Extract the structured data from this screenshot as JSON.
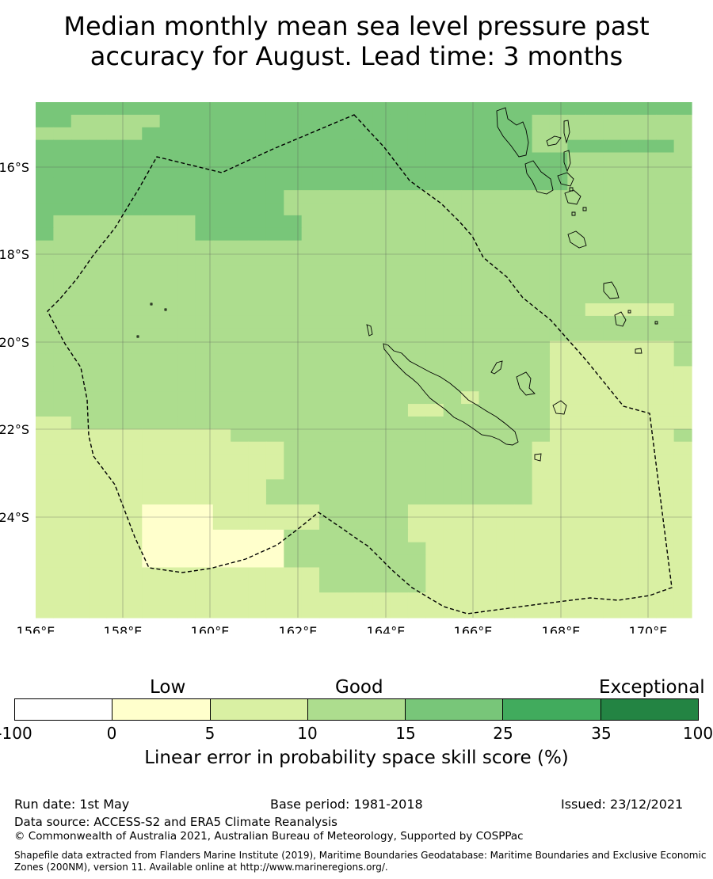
{
  "title": {
    "line1": "Median monthly mean sea level pressure past",
    "line2": "accuracy for August. Lead time: 3 months"
  },
  "map": {
    "lon_labels": [
      "156°E",
      "158°E",
      "160°E",
      "162°E",
      "164°E",
      "166°E",
      "168°E",
      "170°E"
    ],
    "lat_labels": [
      "16°S",
      "18°S",
      "20°S",
      "22°S",
      "24°S"
    ],
    "grid_category_rows": [
      "3333333333333333333333333333333333333",
      "3322222333333333333333333333222222222",
      "2222223333333333333333333333222222222",
      "3333333333333333333333333333223333332",
      "3333333333333333333333333333332222222",
      "3333333333333333333333333333332222222",
      "3333333333333333333333333333332222222",
      "3333333333333322222222222222222222222",
      "3333333333333322222222222222222222222",
      "3222222223333332222222222222222222222",
      "3222222223333332222222222222222222222",
      "2222222222222222222222222222222222222",
      "2222222222222222222222222222222222222",
      "2222222222222222222222222222222222222",
      "2222222222222222222222222222222222222",
      "2222222222222222222222222222222222222",
      "2222222222222222222222222222222111112",
      "2222222222222222222222222222222222222",
      "2222222222222222222222222222222222222",
      "2222222222222222222222222222211111112",
      "2222222222222222222222222222211111112",
      "2222222222222222222222222222211111111",
      "2222222222222222222222222222211111111",
      "2222222222222222222222221222211111111",
      "2222222222222222222221122222211111111",
      "1122222222222222222222222222211111111",
      "1111111111122222222222222222211111112",
      "1111111111111122222222222222111111111",
      "1111111111111122222222222222111111111",
      "1111111111111122222222222222111111111",
      "1111111111111222222222222222111111111",
      "1111111111111222222222222222111111111",
      "1111110000111111222221111111111111111",
      "1111110000111111222221111111111111111",
      "1111110000000022222221111111111111111",
      "1111110000000022222222111111111111111",
      "1111110000000022222222111111111111111",
      "1111111111111111222222111111111111111",
      "1111111111111111222222111111111111111",
      "1111111111111111111111111111111111111",
      "1111111111111111111111111111111111111"
    ]
  },
  "colorbar": {
    "headings": [
      "Low",
      "Good",
      "Exceptional"
    ],
    "ticks": [
      "-100",
      "0",
      "5",
      "10",
      "15",
      "25",
      "35",
      "100"
    ],
    "colors": [
      "#ffffff",
      "#ffffcc",
      "#d9f0a3",
      "#addd8e",
      "#78c679",
      "#41ab5d",
      "#238443"
    ],
    "label": "Linear error in probability space skill score (%)"
  },
  "footer": {
    "run_date": "Run date: 1st May",
    "base_period": "Base period: 1981-2018",
    "issued": "Issued: 23/12/2021",
    "data_source": "Data source: ACCESS-S2 and ERA5 Climate Reanalysis",
    "copyright": "© Commonwealth of Australia 2021, Australian Bureau of Meteorology, Supported by COSPPac",
    "shapefile_line1": "Shapefile data extracted from Flanders Marine Institute (2019), Maritime Boundaries Geodatabase: Maritime Boundaries and Exclusive Economic",
    "shapefile_line2": "Zones (200NM), version 11. Available online at http://www.marineregions.org/."
  }
}
